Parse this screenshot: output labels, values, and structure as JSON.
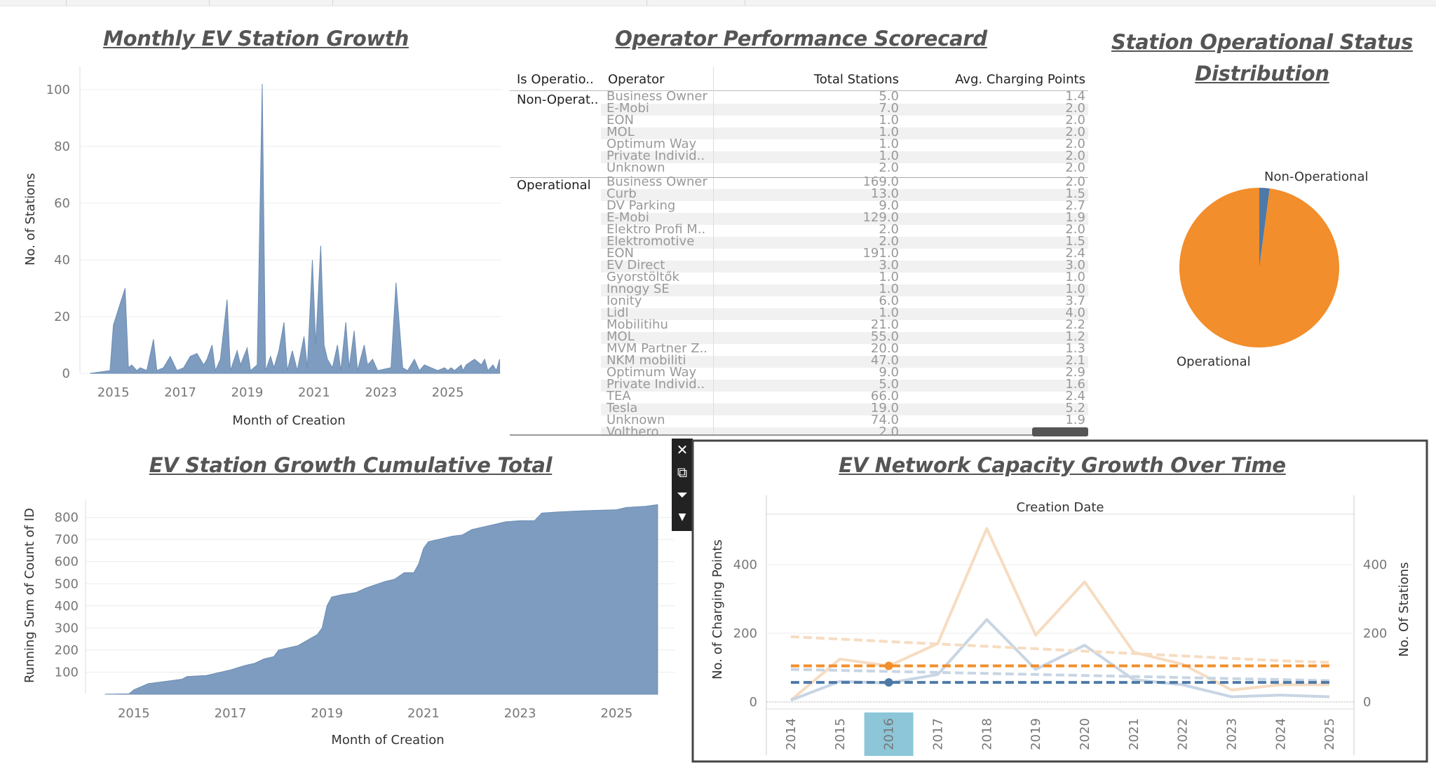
{
  "monthly": {
    "title": "Monthly EV Station Growth",
    "chart_data": {
      "type": "area",
      "title": "Monthly EV Station Growth",
      "xlabel": "Month of Creation",
      "ylabel": "No. of Stations",
      "ylim": [
        0,
        105
      ],
      "y_ticks": [
        "0",
        "20",
        "40",
        "60",
        "80",
        "100"
      ],
      "x_ticks": [
        "2015",
        "2017",
        "2019",
        "2021",
        "2023",
        "2025"
      ],
      "color": "#7e9cbf",
      "points": [
        [
          2014.3,
          0
        ],
        [
          2014.9,
          1
        ],
        [
          2015.0,
          17
        ],
        [
          2015.35,
          30
        ],
        [
          2015.45,
          2
        ],
        [
          2015.55,
          3
        ],
        [
          2015.7,
          1
        ],
        [
          2015.8,
          2
        ],
        [
          2016.0,
          1
        ],
        [
          2016.2,
          12
        ],
        [
          2016.3,
          1
        ],
        [
          2016.5,
          2
        ],
        [
          2016.7,
          6
        ],
        [
          2016.9,
          1
        ],
        [
          2017.1,
          2
        ],
        [
          2017.3,
          6
        ],
        [
          2017.5,
          7
        ],
        [
          2017.7,
          3
        ],
        [
          2017.8,
          5
        ],
        [
          2017.95,
          10
        ],
        [
          2018.05,
          1
        ],
        [
          2018.2,
          5
        ],
        [
          2018.4,
          26
        ],
        [
          2018.5,
          1
        ],
        [
          2018.7,
          8
        ],
        [
          2018.8,
          3
        ],
        [
          2019.0,
          9
        ],
        [
          2019.1,
          1
        ],
        [
          2019.3,
          3
        ],
        [
          2019.45,
          102
        ],
        [
          2019.55,
          1
        ],
        [
          2019.7,
          6
        ],
        [
          2019.8,
          2
        ],
        [
          2019.95,
          8
        ],
        [
          2020.1,
          18
        ],
        [
          2020.2,
          1
        ],
        [
          2020.35,
          8
        ],
        [
          2020.5,
          1
        ],
        [
          2020.7,
          13
        ],
        [
          2020.8,
          2
        ],
        [
          2020.95,
          40
        ],
        [
          2021.05,
          10
        ],
        [
          2021.2,
          45
        ],
        [
          2021.3,
          10
        ],
        [
          2021.4,
          5
        ],
        [
          2021.55,
          2
        ],
        [
          2021.7,
          10
        ],
        [
          2021.8,
          1
        ],
        [
          2021.95,
          18
        ],
        [
          2022.05,
          2
        ],
        [
          2022.2,
          15
        ],
        [
          2022.3,
          1
        ],
        [
          2022.5,
          10
        ],
        [
          2022.6,
          3
        ],
        [
          2022.75,
          5
        ],
        [
          2022.9,
          1
        ],
        [
          2023.3,
          2
        ],
        [
          2023.45,
          32
        ],
        [
          2023.65,
          2
        ],
        [
          2023.8,
          1
        ],
        [
          2024.0,
          5
        ],
        [
          2024.15,
          1
        ],
        [
          2024.3,
          3
        ],
        [
          2024.5,
          2
        ],
        [
          2024.7,
          1
        ],
        [
          2024.9,
          2
        ],
        [
          2025.0,
          1
        ],
        [
          2025.1,
          2
        ],
        [
          2025.2,
          1
        ],
        [
          2025.4,
          3
        ],
        [
          2025.45,
          1
        ],
        [
          2025.55,
          3
        ],
        [
          2025.8,
          5
        ],
        [
          2026.0,
          3
        ],
        [
          2026.1,
          5
        ],
        [
          2026.2,
          1
        ],
        [
          2026.35,
          3
        ],
        [
          2026.45,
          1
        ],
        [
          2026.55,
          5
        ]
      ]
    }
  },
  "scorecard": {
    "title": "Operator Performance Scorecard",
    "headers": {
      "group": "Is Operatio..",
      "operator": "Operator",
      "total": "Total Stations",
      "avg": "Avg. Charging Points"
    },
    "groups": [
      {
        "label": "Non-Operat..",
        "rows": [
          {
            "operator": "Business Owner",
            "total": "5.0",
            "avg": "1.4"
          },
          {
            "operator": "E-Mobi",
            "total": "7.0",
            "avg": "2.0"
          },
          {
            "operator": "EON",
            "total": "1.0",
            "avg": "2.0"
          },
          {
            "operator": "MOL",
            "total": "1.0",
            "avg": "2.0"
          },
          {
            "operator": "Optimum Way",
            "total": "1.0",
            "avg": "2.0"
          },
          {
            "operator": "Private Individ..",
            "total": "1.0",
            "avg": "2.0"
          },
          {
            "operator": "Unknown",
            "total": "2.0",
            "avg": "2.0"
          }
        ]
      },
      {
        "label": "Operational",
        "rows": [
          {
            "operator": "Business Owner",
            "total": "169.0",
            "avg": "2.0"
          },
          {
            "operator": "Curb",
            "total": "13.0",
            "avg": "1.5"
          },
          {
            "operator": "DV Parking",
            "total": "9.0",
            "avg": "2.7"
          },
          {
            "operator": "E-Mobi",
            "total": "129.0",
            "avg": "1.9"
          },
          {
            "operator": "Elektro Profi M..",
            "total": "2.0",
            "avg": "2.0"
          },
          {
            "operator": "Elektromotive",
            "total": "2.0",
            "avg": "1.5"
          },
          {
            "operator": "EON",
            "total": "191.0",
            "avg": "2.4"
          },
          {
            "operator": "EV Direct",
            "total": "3.0",
            "avg": "3.0"
          },
          {
            "operator": "Gyorstöltők",
            "total": "1.0",
            "avg": "1.0"
          },
          {
            "operator": "Innogy SE",
            "total": "1.0",
            "avg": "1.0"
          },
          {
            "operator": "Ionity",
            "total": "6.0",
            "avg": "3.7"
          },
          {
            "operator": "Lidl",
            "total": "1.0",
            "avg": "4.0"
          },
          {
            "operator": "Mobilitihu",
            "total": "21.0",
            "avg": "2.2"
          },
          {
            "operator": "MOL",
            "total": "55.0",
            "avg": "1.2"
          },
          {
            "operator": "MVM Partner Z..",
            "total": "20.0",
            "avg": "1.3"
          },
          {
            "operator": "NKM mobiliti",
            "total": "47.0",
            "avg": "2.1"
          },
          {
            "operator": "Optimum Way",
            "total": "9.0",
            "avg": "2.9"
          },
          {
            "operator": "Private Individ..",
            "total": "5.0",
            "avg": "1.6"
          },
          {
            "operator": "TEA",
            "total": "66.0",
            "avg": "2.4"
          },
          {
            "operator": "Tesla",
            "total": "19.0",
            "avg": "5.2"
          },
          {
            "operator": "Unknown",
            "total": "74.0",
            "avg": "1.9"
          },
          {
            "operator": "Volthero",
            "total": "2.0",
            "avg": ""
          }
        ]
      }
    ]
  },
  "status": {
    "title": "Station Operational Status Distribution",
    "chart_data": {
      "type": "pie",
      "title": "Station Operational Status Distribution",
      "slices": [
        {
          "label": "Non-Operational",
          "value": 18,
          "color": "#4e79a7"
        },
        {
          "label": "Operational",
          "value": 846,
          "color": "#f28e2b"
        }
      ]
    }
  },
  "cumulative": {
    "title": "EV Station Growth Cumulative Total",
    "chart_data": {
      "type": "area",
      "title": "EV Station Growth Cumulative Total",
      "xlabel": "Month of Creation",
      "ylabel": "Running Sum of Count of ID",
      "ylim": [
        0,
        850
      ],
      "y_ticks": [
        "100",
        "200",
        "300",
        "400",
        "500",
        "600",
        "700",
        "800"
      ],
      "x_ticks": [
        "2015",
        "2017",
        "2019",
        "2021",
        "2023",
        "2025"
      ],
      "color": "#7e9cbf",
      "points": [
        [
          2014.4,
          0
        ],
        [
          2014.9,
          2
        ],
        [
          2015.0,
          20
        ],
        [
          2015.3,
          48
        ],
        [
          2015.8,
          62
        ],
        [
          2016.0,
          68
        ],
        [
          2016.1,
          80
        ],
        [
          2016.5,
          85
        ],
        [
          2016.8,
          100
        ],
        [
          2017.0,
          110
        ],
        [
          2017.3,
          130
        ],
        [
          2017.5,
          140
        ],
        [
          2017.7,
          160
        ],
        [
          2017.9,
          170
        ],
        [
          2018.0,
          200
        ],
        [
          2018.2,
          210
        ],
        [
          2018.4,
          220
        ],
        [
          2018.6,
          245
        ],
        [
          2018.8,
          270
        ],
        [
          2018.9,
          300
        ],
        [
          2019.0,
          400
        ],
        [
          2019.1,
          440
        ],
        [
          2019.3,
          450
        ],
        [
          2019.6,
          460
        ],
        [
          2019.8,
          480
        ],
        [
          2020.0,
          495
        ],
        [
          2020.2,
          510
        ],
        [
          2020.4,
          520
        ],
        [
          2020.6,
          550
        ],
        [
          2020.8,
          550
        ],
        [
          2020.9,
          590
        ],
        [
          2021.0,
          660
        ],
        [
          2021.1,
          690
        ],
        [
          2021.4,
          705
        ],
        [
          2021.6,
          715
        ],
        [
          2021.8,
          720
        ],
        [
          2022.0,
          745
        ],
        [
          2022.3,
          760
        ],
        [
          2022.5,
          770
        ],
        [
          2022.7,
          780
        ],
        [
          2023.0,
          785
        ],
        [
          2023.3,
          785
        ],
        [
          2023.45,
          820
        ],
        [
          2023.8,
          825
        ],
        [
          2024.3,
          830
        ],
        [
          2024.6,
          832
        ],
        [
          2025.0,
          835
        ],
        [
          2025.2,
          845
        ],
        [
          2025.6,
          850
        ],
        [
          2025.85,
          858
        ]
      ]
    }
  },
  "capacity": {
    "title": "EV Network Capacity Growth Over Time",
    "header": "Creation Date",
    "chart_data": {
      "type": "line",
      "title": "EV Network Capacity Growth Over Time",
      "xlabel": "Creation Date",
      "ylabel": "No. of Charging Points",
      "y2label": "No. Of Stations",
      "categories": [
        "2014",
        "2015",
        "2016",
        "2017",
        "2018",
        "2019",
        "2020",
        "2021",
        "2022",
        "2023",
        "2024",
        "2025"
      ],
      "highlighted_category": "2016",
      "ylim": [
        0,
        520
      ],
      "y2lim": [
        0,
        520
      ],
      "y_ticks": [
        "0",
        "200",
        "400"
      ],
      "y2_ticks": [
        "0",
        "200",
        "400"
      ],
      "series": [
        {
          "name": "",
          "axis": "left",
          "color": "#f6dcc1",
          "values": [
            5,
            125,
            105,
            170,
            505,
            195,
            350,
            145,
            110,
            35,
            50,
            50
          ]
        },
        {
          "name": "",
          "axis": "right",
          "color": "#c8d5e4",
          "values": [
            5,
            60,
            55,
            80,
            240,
            95,
            165,
            65,
            50,
            15,
            20,
            15
          ]
        },
        {
          "name": "",
          "axis": "left",
          "color": "#f6dcc1",
          "dash": true,
          "values": [
            190,
            183,
            176,
            169,
            162,
            155,
            148,
            141,
            134,
            127,
            120,
            115
          ]
        },
        {
          "name": "",
          "axis": "right",
          "color": "#c8d5e4",
          "dash": true,
          "values": [
            95,
            92,
            89,
            86,
            83,
            80,
            77,
            74,
            71,
            68,
            65,
            62
          ]
        },
        {
          "name": "",
          "axis": "left",
          "color": "#f28e2b",
          "dash": true,
          "values": [
            105,
            105,
            105,
            105,
            105,
            105,
            105,
            105,
            105,
            105,
            105,
            105
          ]
        },
        {
          "name": "",
          "axis": "right",
          "color": "#4e79a7",
          "dash": true,
          "values": [
            57,
            57,
            57,
            57,
            57,
            57,
            57,
            57,
            57,
            57,
            57,
            57
          ]
        }
      ],
      "markers": [
        {
          "category": "2016",
          "value": 105,
          "color": "#f28e2b"
        },
        {
          "category": "2016",
          "value": 57,
          "color": "#4e79a7"
        }
      ]
    }
  },
  "popup_icons": [
    "close-icon",
    "open-external-icon",
    "filter-icon",
    "dropdown-arrow-icon"
  ]
}
